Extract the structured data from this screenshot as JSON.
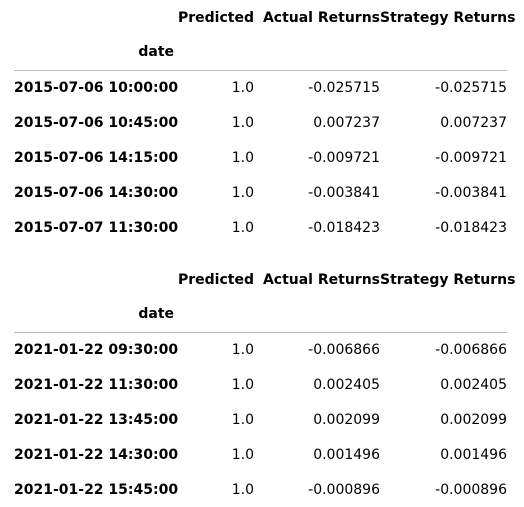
{
  "table1": {
    "columns": [
      "Predicted",
      "Actual Returns",
      "Strategy Returns"
    ],
    "index_name": "date",
    "rows": [
      {
        "date": "2015-07-06 10:00:00",
        "predicted": "1.0",
        "actual": "-0.025715",
        "strategy": "-0.025715"
      },
      {
        "date": "2015-07-06 10:45:00",
        "predicted": "1.0",
        "actual": "0.007237",
        "strategy": "0.007237"
      },
      {
        "date": "2015-07-06 14:15:00",
        "predicted": "1.0",
        "actual": "-0.009721",
        "strategy": "-0.009721"
      },
      {
        "date": "2015-07-06 14:30:00",
        "predicted": "1.0",
        "actual": "-0.003841",
        "strategy": "-0.003841"
      },
      {
        "date": "2015-07-07 11:30:00",
        "predicted": "1.0",
        "actual": "-0.018423",
        "strategy": "-0.018423"
      }
    ]
  },
  "table2": {
    "columns": [
      "Predicted",
      "Actual Returns",
      "Strategy Returns"
    ],
    "index_name": "date",
    "rows": [
      {
        "date": "2021-01-22 09:30:00",
        "predicted": "1.0",
        "actual": "-0.006866",
        "strategy": "-0.006866"
      },
      {
        "date": "2021-01-22 11:30:00",
        "predicted": "1.0",
        "actual": "0.002405",
        "strategy": "0.002405"
      },
      {
        "date": "2021-01-22 13:45:00",
        "predicted": "1.0",
        "actual": "0.002099",
        "strategy": "0.002099"
      },
      {
        "date": "2021-01-22 14:30:00",
        "predicted": "1.0",
        "actual": "0.001496",
        "strategy": "0.001496"
      },
      {
        "date": "2021-01-22 15:45:00",
        "predicted": "1.0",
        "actual": "-0.000896",
        "strategy": "-0.000896"
      }
    ]
  }
}
